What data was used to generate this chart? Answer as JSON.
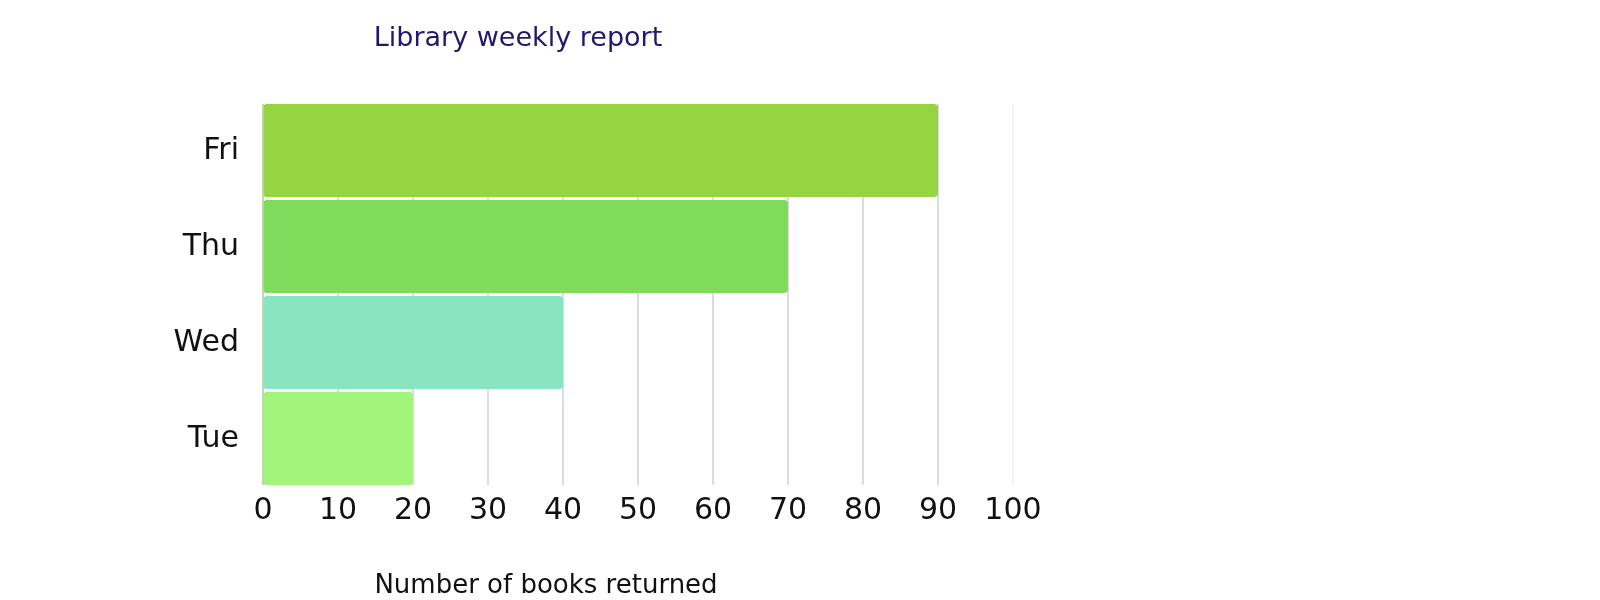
{
  "chart_data": {
    "type": "bar",
    "orientation": "horizontal",
    "title": "Library weekly report",
    "xlabel": "Number of books returned",
    "categories": [
      "Fri",
      "Thu",
      "Wed",
      "Tue"
    ],
    "values": [
      90,
      70,
      40,
      20
    ],
    "colors": [
      "#95d540",
      "#7edb5c",
      "#88e5c0",
      "#a0f57a"
    ],
    "xlim": [
      0,
      100
    ],
    "xticks": [
      0,
      10,
      20,
      30,
      40,
      50,
      60,
      70,
      80,
      90,
      100
    ],
    "grid": "x"
  }
}
